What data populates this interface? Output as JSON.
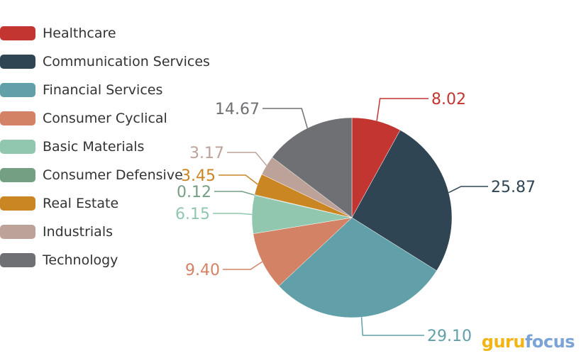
{
  "chart_data": {
    "type": "pie",
    "categories": [
      "Healthcare",
      "Communication Services",
      "Financial Services",
      "Consumer Cyclical",
      "Basic Materials",
      "Consumer Defensive",
      "Real Estate",
      "Industrials",
      "Technology"
    ],
    "values": [
      8.02,
      25.87,
      29.1,
      9.4,
      6.15,
      0.12,
      3.45,
      3.17,
      14.67
    ],
    "labels": [
      "8.02",
      "25.87",
      "29.10",
      "9.40",
      "6.15",
      "0.12",
      "3.45",
      "3.17",
      "14.67"
    ],
    "colors": [
      "#c23531",
      "#2f4554",
      "#61a0a8",
      "#d48265",
      "#91c7ae",
      "#749f83",
      "#ca8622",
      "#bda29a",
      "#6e7074"
    ],
    "legend_position": "left",
    "start_angle": "top, clockwise"
  },
  "watermark": {
    "part1": "guru",
    "part2": "focus"
  }
}
